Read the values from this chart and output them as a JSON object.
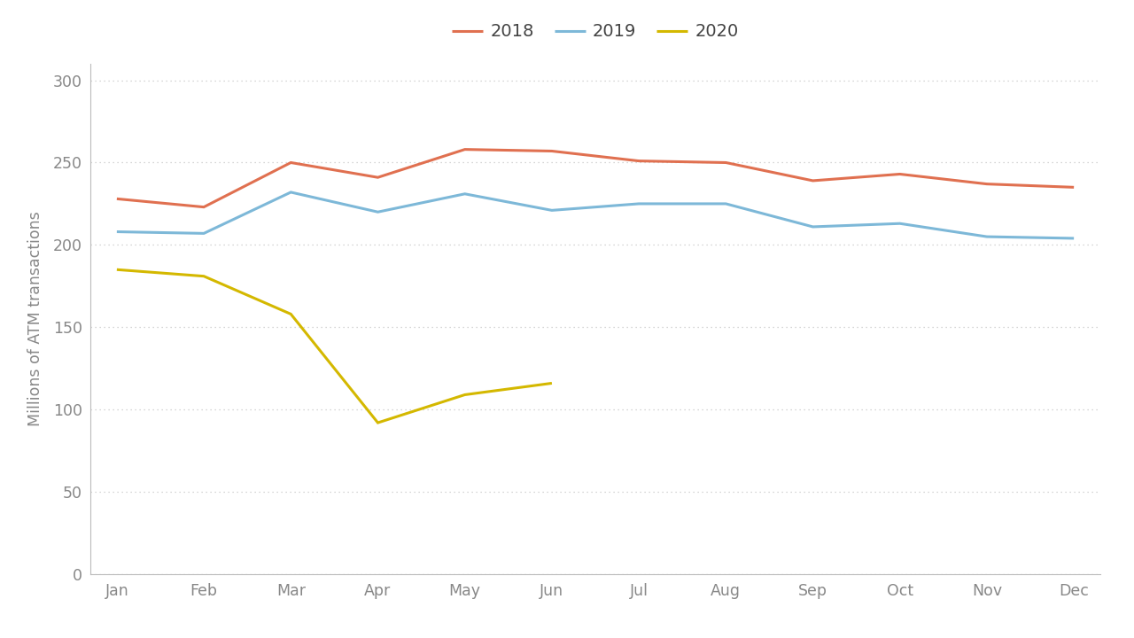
{
  "months": [
    "Jan",
    "Feb",
    "Mar",
    "Apr",
    "May",
    "Jun",
    "Jul",
    "Aug",
    "Sep",
    "Oct",
    "Nov",
    "Dec"
  ],
  "series": {
    "2018": [
      228,
      223,
      250,
      241,
      258,
      257,
      251,
      250,
      239,
      243,
      237,
      235
    ],
    "2019": [
      208,
      207,
      232,
      220,
      231,
      221,
      225,
      225,
      211,
      213,
      205,
      204
    ],
    "2020": [
      185,
      181,
      158,
      92,
      109,
      116,
      null,
      null,
      null,
      null,
      null,
      null
    ]
  },
  "colors": {
    "2018": "#E07050",
    "2019": "#7DB8D8",
    "2020": "#D4B800"
  },
  "line_width": 2.2,
  "ylabel": "Millions of ATM transactions",
  "ylim": [
    0,
    310
  ],
  "yticks": [
    0,
    50,
    100,
    150,
    200,
    250,
    300
  ],
  "background_color": "#ffffff",
  "grid_color": "#c8c8c8",
  "tick_color": "#888888",
  "spine_color": "#bbbbbb",
  "legend_fontsize": 14,
  "axis_fontsize": 12.5
}
